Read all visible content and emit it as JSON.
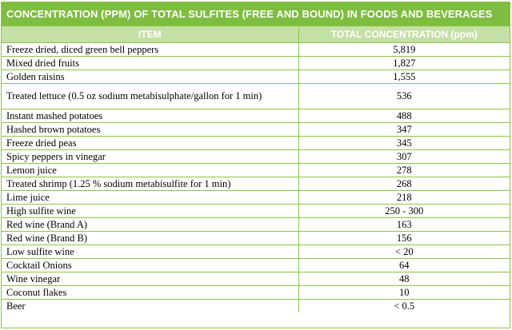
{
  "title": "CONCENTRATION (PPM) OF TOTAL SULFITES (FREE AND BOUND) IN FOODS AND BEVERAGES",
  "headers": {
    "item": "ITEM",
    "concentration": "TOTAL CONCENTRATION (ppm)"
  },
  "rows": [
    {
      "item": "Freeze dried, diced green bell peppers",
      "value": "5,819"
    },
    {
      "item": "Mixed dried fruits",
      "value": "1,827"
    },
    {
      "item": "Golden raisins",
      "value": "1,555"
    },
    {
      "item": "Treated lettuce (0.5 oz sodium metabisulphate/gallon for 1 min)",
      "value": "536"
    },
    {
      "item": "Instant mashed potatoes",
      "value": "488"
    },
    {
      "item": "Hashed brown potatoes",
      "value": "347"
    },
    {
      "item": "Freeze dried peas",
      "value": "345"
    },
    {
      "item": "Spicy peppers  in vinegar",
      "value": "307"
    },
    {
      "item": "Lemon juice",
      "value": "278"
    },
    {
      "item": "Treated shrimp (1.25 % sodium metabisulfite for 1 min)",
      "value": "268"
    },
    {
      "item": "Lime juice",
      "value": "218"
    },
    {
      "item": "High sulfite wine",
      "value": "250 - 300"
    },
    {
      "item": "Red wine (Brand A)",
      "value": "163"
    },
    {
      "item": "Red wine (Brand B)",
      "value": "156"
    },
    {
      "item": "Low sulfite wine",
      "value": "< 20"
    },
    {
      "item": "Cocktail Onions",
      "value": "64"
    },
    {
      "item": "Wine vinegar",
      "value": "48"
    },
    {
      "item": "Coconut flakes",
      "value": "10"
    },
    {
      "item": "Beer",
      "value": "< 0.5"
    }
  ],
  "colors": {
    "title_bg": "#7ebd3f",
    "header_bg": "#c5e0a5",
    "border": "#8cc63f"
  }
}
